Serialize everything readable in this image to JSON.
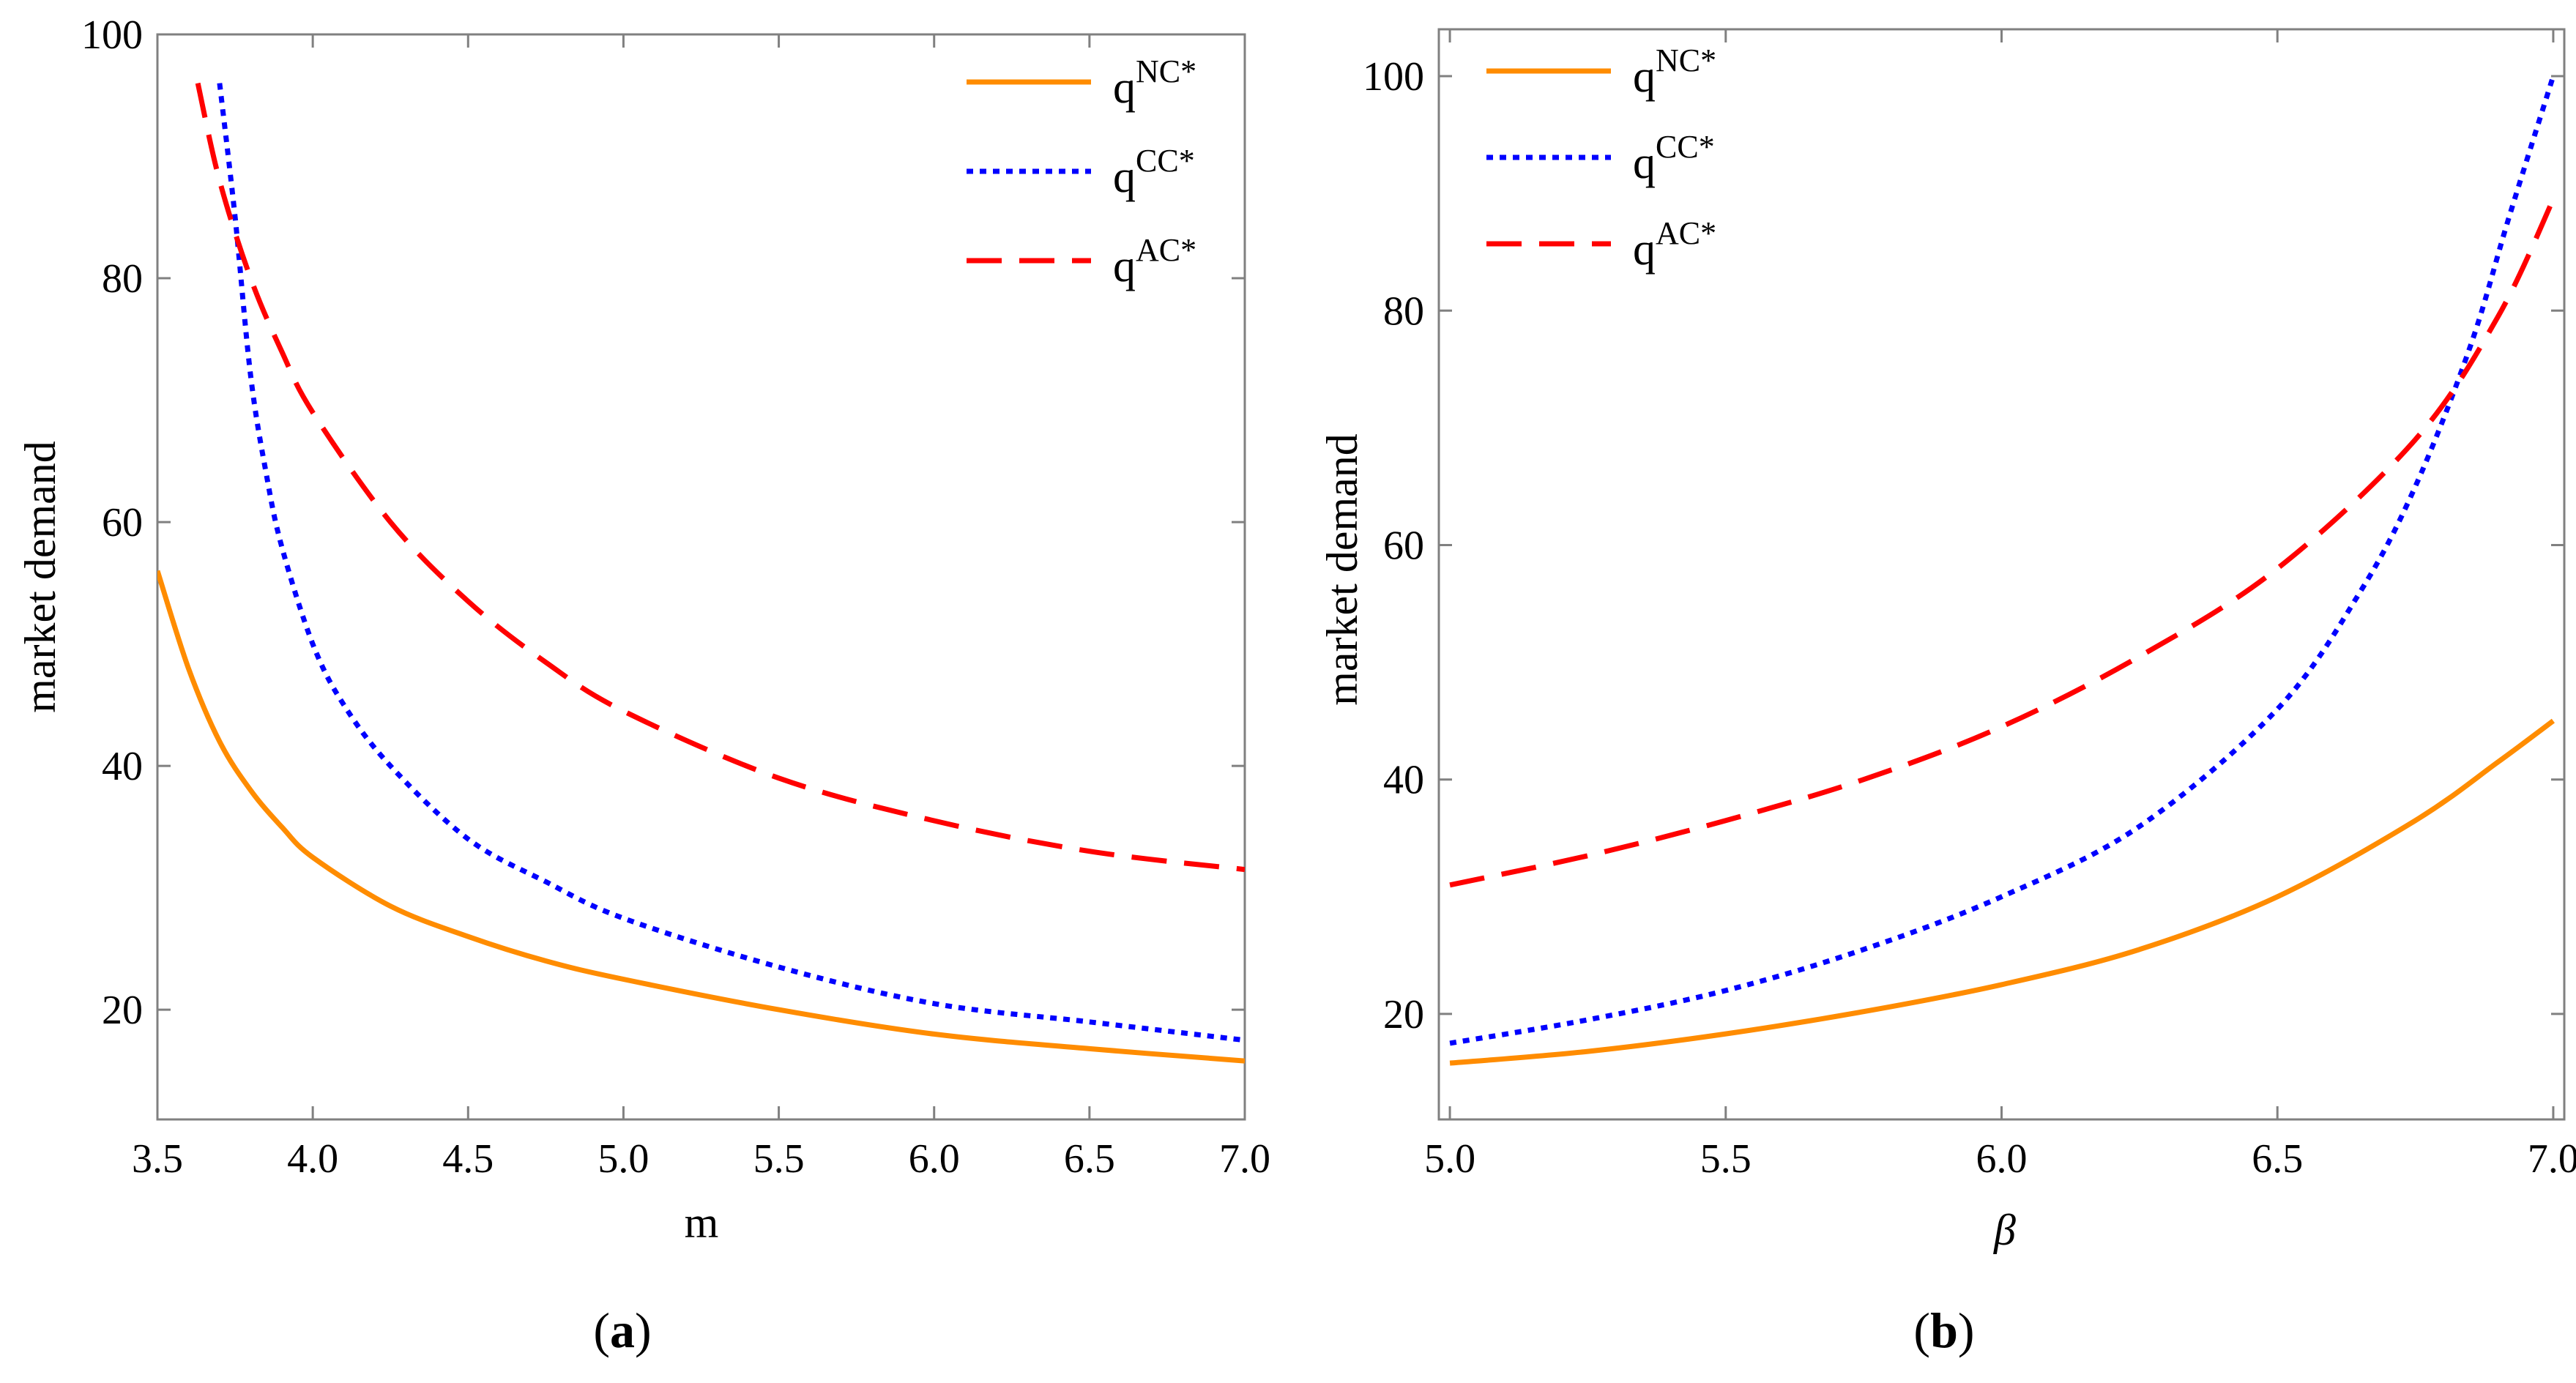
{
  "chart_data": [
    {
      "type": "line",
      "panel_label": "a",
      "xlabel": "m",
      "ylabel": "market demand",
      "xlim": [
        3.5,
        7.0
      ],
      "ylim": [
        11,
        100
      ],
      "xticks": [
        "3.5",
        "4.0",
        "4.5",
        "5.0",
        "5.5",
        "6.0",
        "6.5",
        "7.0"
      ],
      "yticks": [
        "20",
        "40",
        "60",
        "80",
        "100"
      ],
      "legend_position": "top-right",
      "series": [
        {
          "name": "q^{NC*}",
          "base": "q",
          "sup": "NC*",
          "color": "#FF8C00",
          "style": "solid",
          "x": [
            3.5,
            3.6,
            3.7,
            3.8,
            3.9,
            4.0,
            4.25,
            4.5,
            4.75,
            5.0,
            5.5,
            6.0,
            6.5,
            7.0
          ],
          "y": [
            56,
            48,
            42,
            38,
            35,
            32.5,
            28.5,
            26,
            24,
            22.5,
            20,
            18,
            16.8,
            15.8
          ]
        },
        {
          "name": "q^{CC*}",
          "base": "q",
          "sup": "CC*",
          "color": "#0000FF",
          "style": "dotted",
          "x": [
            3.7,
            3.75,
            3.8,
            3.85,
            3.9,
            4.0,
            4.1,
            4.25,
            4.5,
            4.75,
            5.0,
            5.5,
            6.0,
            6.5,
            7.0
          ],
          "y": [
            96,
            85,
            72,
            64,
            58,
            50,
            45,
            40,
            34,
            30.5,
            27.5,
            23.5,
            20.5,
            19,
            17.5
          ]
        },
        {
          "name": "q^{AC*}",
          "base": "q",
          "sup": "AC*",
          "color": "#FF0000",
          "style": "dashed",
          "x": [
            3.63,
            3.7,
            3.8,
            3.9,
            4.0,
            4.25,
            4.5,
            4.75,
            5.0,
            5.5,
            6.0,
            6.5,
            7.0
          ],
          "y": [
            96,
            88,
            80,
            74,
            69,
            60,
            53.5,
            48.5,
            44.5,
            39,
            35.5,
            33,
            31.5
          ]
        }
      ]
    },
    {
      "type": "line",
      "panel_label": "b",
      "xlabel": "β",
      "ylabel": "market demand",
      "xlim": [
        4.98,
        7.02
      ],
      "ylim": [
        11,
        104
      ],
      "xticks": [
        "5.0",
        "5.5",
        "6.0",
        "6.5",
        "7.0"
      ],
      "yticks": [
        "20",
        "40",
        "60",
        "80",
        "100"
      ],
      "legend_position": "top-left",
      "series": [
        {
          "name": "q^{NC*}",
          "base": "q",
          "sup": "NC*",
          "color": "#FF8C00",
          "style": "solid",
          "x": [
            5.0,
            5.25,
            5.5,
            5.75,
            6.0,
            6.25,
            6.5,
            6.75,
            6.9,
            7.0
          ],
          "y": [
            15.8,
            16.8,
            18.3,
            20.2,
            22.5,
            25.5,
            30,
            36.5,
            41.5,
            45
          ]
        },
        {
          "name": "q^{CC*}",
          "base": "q",
          "sup": "CC*",
          "color": "#0000FF",
          "style": "dotted",
          "x": [
            5.0,
            5.25,
            5.5,
            5.75,
            6.0,
            6.25,
            6.5,
            6.65,
            6.75,
            6.85,
            6.92,
            7.0
          ],
          "y": [
            17.5,
            19.5,
            22,
            25.5,
            30,
            36,
            46,
            56,
            65,
            77,
            88,
            100
          ]
        },
        {
          "name": "q^{AC*}",
          "base": "q",
          "sup": "AC*",
          "color": "#FF0000",
          "style": "dashed",
          "x": [
            5.0,
            5.25,
            5.5,
            5.75,
            6.0,
            6.25,
            6.5,
            6.75,
            6.9,
            7.0
          ],
          "y": [
            31,
            33.5,
            36.5,
            40,
            44.5,
            50.5,
            58,
            69,
            79.5,
            89.5
          ]
        }
      ]
    }
  ]
}
